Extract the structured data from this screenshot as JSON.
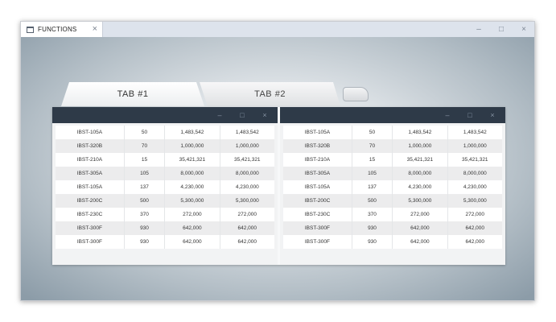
{
  "window": {
    "tab_label": "FUNCTIONS",
    "tab_icon": "window-icon",
    "close_glyph": "×",
    "minimize_glyph": "–",
    "maximize_glyph": "□"
  },
  "tabs": [
    {
      "label": "TAB #1",
      "active": true
    },
    {
      "label": "TAB #2",
      "active": false
    }
  ],
  "panels": {
    "header_color": "#2e3a48",
    "left": {
      "rows": [
        [
          "IBST-105A",
          "50",
          "1,483,542",
          "1,483,542"
        ],
        [
          "IBST-320B",
          "70",
          "1,000,000",
          "1,000,000"
        ],
        [
          "IBST-210A",
          "15",
          "35,421,321",
          "35,421,321"
        ],
        [
          "IBST-305A",
          "105",
          "8,000,000",
          "8,000,000"
        ],
        [
          "IBST-105A",
          "137",
          "4,230,000",
          "4,230,000"
        ],
        [
          "IBST-200C",
          "500",
          "5,300,000",
          "5,300,000"
        ],
        [
          "IBST-230C",
          "370",
          "272,000",
          "272,000"
        ],
        [
          "IBST-300F",
          "930",
          "642,000",
          "642,000"
        ],
        [
          "IBST-300F",
          "930",
          "642,000",
          "642,000"
        ]
      ]
    },
    "right": {
      "rows": [
        [
          "IBST-105A",
          "50",
          "1,483,542",
          "1,483,542"
        ],
        [
          "IBST-320B",
          "70",
          "1,000,000",
          "1,000,000"
        ],
        [
          "IBST-210A",
          "15",
          "35,421,321",
          "35,421,321"
        ],
        [
          "IBST-305A",
          "105",
          "8,000,000",
          "8,000,000"
        ],
        [
          "IBST-105A",
          "137",
          "4,230,000",
          "4,230,000"
        ],
        [
          "IBST-200C",
          "500",
          "5,300,000",
          "5,300,000"
        ],
        [
          "IBST-230C",
          "370",
          "272,000",
          "272,000"
        ],
        [
          "IBST-300F",
          "930",
          "642,000",
          "642,000"
        ],
        [
          "IBST-300F",
          "930",
          "642,000",
          "642,000"
        ]
      ]
    }
  }
}
